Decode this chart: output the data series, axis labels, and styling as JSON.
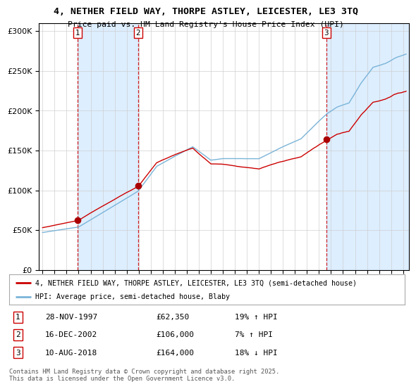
{
  "title_line1": "4, NETHER FIELD WAY, THORPE ASTLEY, LEICESTER, LE3 3TQ",
  "title_line2": "Price paid vs. HM Land Registry's House Price Index (HPI)",
  "background_color": "#ffffff",
  "plot_bg_color": "#ffffff",
  "legend_line1": "4, NETHER FIELD WAY, THORPE ASTLEY, LEICESTER, LE3 3TQ (semi-detached house)",
  "legend_line2": "HPI: Average price, semi-detached house, Blaby",
  "transactions": [
    {
      "num": 1,
      "date": "28-NOV-1997",
      "price": 62350,
      "hpi_pct": "19% ↑ HPI",
      "year": 1997.91
    },
    {
      "num": 2,
      "date": "16-DEC-2002",
      "price": 106000,
      "hpi_pct": "7% ↑ HPI",
      "year": 2002.96
    },
    {
      "num": 3,
      "date": "10-AUG-2018",
      "price": 164000,
      "hpi_pct": "18% ↓ HPI",
      "year": 2018.61
    }
  ],
  "footnote": "Contains HM Land Registry data © Crown copyright and database right 2025.\nThis data is licensed under the Open Government Licence v3.0.",
  "hpi_color": "#7ab4d8",
  "price_color": "#cc0000",
  "marker_color": "#aa0000",
  "vline_color": "#cc0000",
  "shade_color": "#ddeeff",
  "grid_color": "#cccccc",
  "ylim": [
    0,
    310000
  ],
  "yticks": [
    0,
    50000,
    100000,
    150000,
    200000,
    250000,
    300000
  ],
  "xlim_start": 1994.7,
  "xlim_end": 2025.5
}
